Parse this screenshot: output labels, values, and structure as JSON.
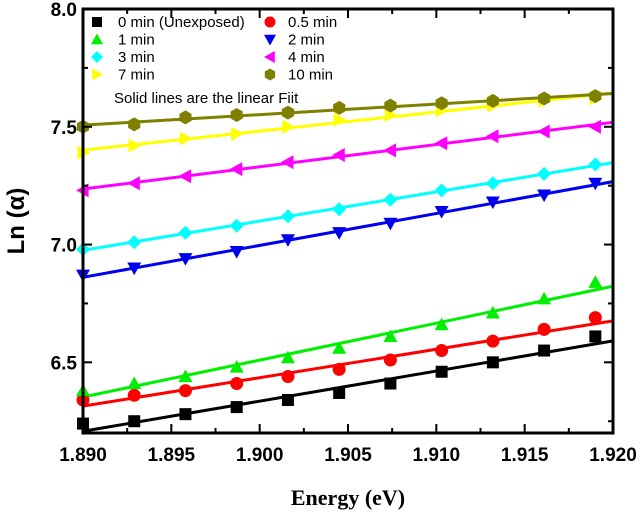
{
  "chart_data": {
    "type": "scatter",
    "xlabel": "Energy (eV)",
    "ylabel": "Ln (α)",
    "xlim": [
      1.89,
      1.92
    ],
    "ylim": [
      6.2,
      8.0
    ],
    "xticks": [
      "1.890",
      "1.895",
      "1.900",
      "1.905",
      "1.910",
      "1.915",
      "1.920"
    ],
    "yticks": [
      "6.5",
      "7.0",
      "7.5",
      "8.0"
    ],
    "legend_placement": "top-left",
    "note": "Solid lines are the linear Fiit",
    "x": [
      1.89,
      1.8929,
      1.8958,
      1.8987,
      1.9016,
      1.9045,
      1.9074,
      1.9103,
      1.9132,
      1.9161,
      1.919
    ],
    "series": [
      {
        "name": "0 min (Unexposed)",
        "marker": "square",
        "color": "#000000",
        "values": [
          6.24,
          6.25,
          6.28,
          6.31,
          6.34,
          6.37,
          6.41,
          6.46,
          6.5,
          6.55,
          6.61
        ]
      },
      {
        "name": "0.5 min",
        "marker": "circle",
        "color": "#ff0000",
        "values": [
          6.34,
          6.36,
          6.38,
          6.41,
          6.44,
          6.47,
          6.51,
          6.55,
          6.59,
          6.64,
          6.69
        ]
      },
      {
        "name": "1 min",
        "marker": "triangle-up",
        "color": "#00ee00",
        "values": [
          6.38,
          6.41,
          6.44,
          6.48,
          6.52,
          6.56,
          6.61,
          6.66,
          6.71,
          6.77,
          6.84
        ]
      },
      {
        "name": "2 min",
        "marker": "triangle-down",
        "color": "#0000ee",
        "values": [
          6.87,
          6.9,
          6.94,
          6.97,
          7.02,
          7.05,
          7.09,
          7.14,
          7.18,
          7.21,
          7.26
        ]
      },
      {
        "name": "3 min",
        "marker": "diamond",
        "color": "#00ffff",
        "values": [
          6.98,
          7.01,
          7.05,
          7.08,
          7.12,
          7.15,
          7.19,
          7.23,
          7.26,
          7.3,
          7.34
        ]
      },
      {
        "name": "4 min",
        "marker": "triangle-left",
        "color": "#ff00ff",
        "values": [
          7.23,
          7.26,
          7.29,
          7.32,
          7.35,
          7.38,
          7.4,
          7.43,
          7.46,
          7.48,
          7.5
        ]
      },
      {
        "name": "7 min",
        "marker": "triangle-right",
        "color": "#ffff00",
        "values": [
          7.39,
          7.42,
          7.45,
          7.47,
          7.5,
          7.53,
          7.55,
          7.57,
          7.59,
          7.61,
          7.62
        ]
      },
      {
        "name": "10 min",
        "marker": "hexagon",
        "color": "#808000",
        "values": [
          7.5,
          7.51,
          7.54,
          7.55,
          7.56,
          7.58,
          7.59,
          7.6,
          7.61,
          7.62,
          7.63
        ]
      }
    ]
  }
}
